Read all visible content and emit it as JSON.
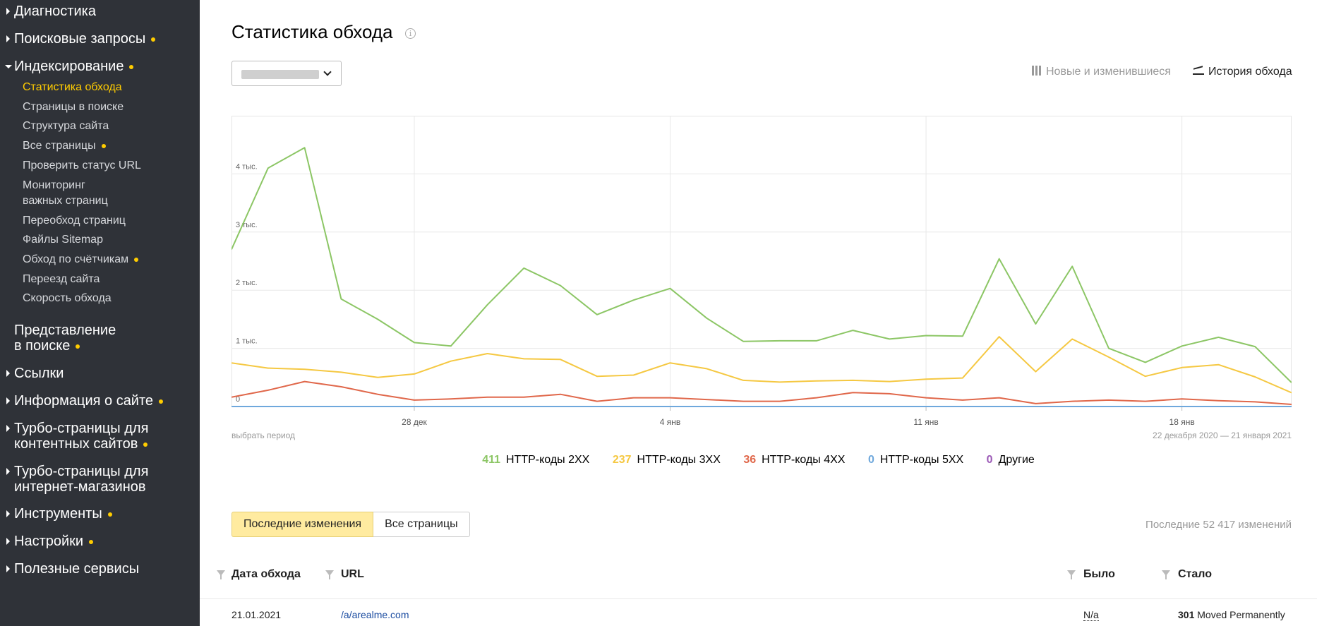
{
  "sidebar": {
    "sections": [
      {
        "label": "Диагностика",
        "expanded": false,
        "badge": false
      },
      {
        "label": "Поисковые запросы",
        "expanded": false,
        "badge": true
      },
      {
        "label": "Индексирование",
        "expanded": true,
        "badge": true
      },
      {
        "label": "Представление\nв поиске",
        "expanded": null,
        "badge": true
      },
      {
        "label": "Ссылки",
        "expanded": false,
        "badge": false
      },
      {
        "label": "Информация о сайте",
        "expanded": false,
        "badge": true
      },
      {
        "label": "Турбо-страницы для\nконтентных сайтов",
        "expanded": false,
        "badge": true
      },
      {
        "label": "Турбо-страницы для\nинтернет-магазинов",
        "expanded": false,
        "badge": false
      },
      {
        "label": "Инструменты",
        "expanded": false,
        "badge": true
      },
      {
        "label": "Настройки",
        "expanded": false,
        "badge": true
      },
      {
        "label": "Полезные сервисы",
        "expanded": false,
        "badge": false
      }
    ],
    "indexing_items": [
      {
        "label": "Статистика обхода",
        "active": true,
        "badge": false
      },
      {
        "label": "Страницы в поиске",
        "active": false,
        "badge": false
      },
      {
        "label": "Структура сайта",
        "active": false,
        "badge": false
      },
      {
        "label": "Все страницы",
        "active": false,
        "badge": true
      },
      {
        "label": "Проверить статус URL",
        "active": false,
        "badge": false
      },
      {
        "label": "Мониторинг\nважных страниц",
        "active": false,
        "badge": false
      },
      {
        "label": "Переобход страниц",
        "active": false,
        "badge": false
      },
      {
        "label": "Файлы Sitemap",
        "active": false,
        "badge": false
      },
      {
        "label": "Обход по счётчикам",
        "active": false,
        "badge": true
      },
      {
        "label": "Переезд сайта",
        "active": false,
        "badge": false
      },
      {
        "label": "Скорость обхода",
        "active": false,
        "badge": false
      }
    ]
  },
  "header": {
    "title": "Статистика обхода",
    "info_icon": "info-icon",
    "view_new_changed": "Новые и изменившиеся",
    "view_history": "История обхода"
  },
  "period": {
    "select_label": "выбрать период",
    "range": "22 декабря 2020 — 21 января 2021"
  },
  "colors": {
    "2xx": "#8cc665",
    "3xx": "#f5c842",
    "4xx": "#e0674a",
    "5xx": "#6fa8dc",
    "other": "#9b59b6",
    "accent": "#ffcc00",
    "sidebar_bg": "#2f3238"
  },
  "chart_data": {
    "type": "line",
    "title": "",
    "xlabel": "",
    "ylabel": "",
    "ylim": [
      0,
      5000
    ],
    "yticks": [
      0,
      1000,
      2000,
      3000,
      4000
    ],
    "ytick_labels": [
      "0",
      "1 тыс.",
      "2 тыс.",
      "3 тыс.",
      "4 тыс."
    ],
    "x_start_day": 0,
    "x_end_day": 29,
    "xticks": [
      {
        "day": 5,
        "label": "28 дек"
      },
      {
        "day": 12,
        "label": "4 янв"
      },
      {
        "day": 19,
        "label": "11 янв"
      },
      {
        "day": 26,
        "label": "18 янв"
      }
    ],
    "series": [
      {
        "key": "2xx",
        "name": "HTTP-коды 2XX",
        "count": "411",
        "values": [
          2700,
          4100,
          4450,
          1850,
          1500,
          1100,
          1040,
          1750,
          2380,
          2080,
          1580,
          1830,
          2030,
          1520,
          1120,
          1130,
          1130,
          1310,
          1160,
          1220,
          1210,
          2540,
          1420,
          2410,
          1000,
          760,
          1040,
          1190,
          1030,
          411
        ]
      },
      {
        "key": "3xx",
        "name": "HTTP-коды 3XX",
        "count": "237",
        "values": [
          750,
          660,
          640,
          590,
          500,
          560,
          780,
          910,
          820,
          810,
          520,
          540,
          750,
          650,
          450,
          420,
          440,
          450,
          430,
          470,
          490,
          1200,
          600,
          1160,
          850,
          520,
          670,
          720,
          510,
          237
        ]
      },
      {
        "key": "4xx",
        "name": "HTTP-коды 4XX",
        "count": "36",
        "values": [
          160,
          280,
          430,
          340,
          210,
          110,
          130,
          160,
          160,
          210,
          90,
          150,
          150,
          120,
          90,
          90,
          150,
          240,
          220,
          150,
          110,
          150,
          50,
          90,
          110,
          90,
          130,
          100,
          80,
          36
        ]
      },
      {
        "key": "5xx",
        "name": "HTTP-коды 5XX",
        "count": "0",
        "values": [
          0,
          0,
          0,
          0,
          0,
          0,
          0,
          0,
          0,
          0,
          0,
          0,
          0,
          0,
          0,
          0,
          0,
          0,
          0,
          0,
          0,
          0,
          0,
          0,
          0,
          0,
          0,
          0,
          0,
          0
        ]
      },
      {
        "key": "other",
        "name": "Другие",
        "count": "0",
        "values": [
          0,
          0,
          0,
          0,
          0,
          0,
          0,
          0,
          0,
          0,
          0,
          0,
          0,
          0,
          0,
          0,
          0,
          0,
          0,
          0,
          0,
          0,
          0,
          0,
          0,
          0,
          0,
          0,
          0,
          0
        ]
      }
    ]
  },
  "tabs": {
    "recent": "Последние изменения",
    "all": "Все страницы",
    "changes_count": "Последние 52 417 изменений"
  },
  "table": {
    "columns": {
      "date": "Дата обхода",
      "url": "URL",
      "was": "Было",
      "became": "Стало"
    },
    "rows": [
      {
        "date": "21.01.2021",
        "url": "/a/arealme.com",
        "was": "N/a",
        "became_code": "301",
        "became_text": "Moved Permanently"
      }
    ]
  }
}
